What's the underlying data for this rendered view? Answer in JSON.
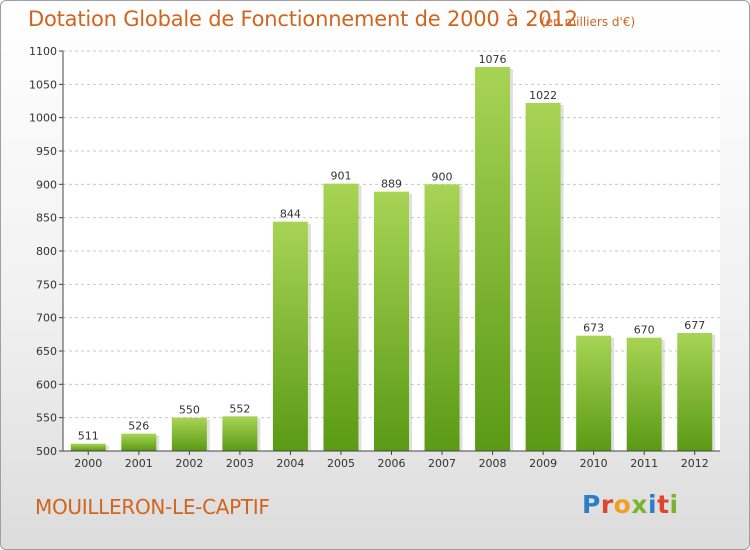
{
  "header": {
    "title": "Dotation Globale de Fonctionnement de 2000 à 2012",
    "subtitle": "(en milliers d'€)"
  },
  "footer": {
    "commune": "MOUILLERON-LE-CAPTIF",
    "logo_text": "Proxiti",
    "logo_colors": [
      "#2d7fc1",
      "#e0462e",
      "#f0a020",
      "#7ab42c",
      "#2d7fc1",
      "#e0462e",
      "#7ab42c"
    ]
  },
  "colors": {
    "accent": "#d2641e",
    "bar_light": "#a8d455",
    "bar_dark": "#5a9a14",
    "grid": "#c8c8c8",
    "axis": "#444444"
  },
  "chart_data": {
    "type": "bar",
    "categories": [
      "2000",
      "2001",
      "2002",
      "2003",
      "2004",
      "2005",
      "2006",
      "2007",
      "2008",
      "2009",
      "2010",
      "2011",
      "2012"
    ],
    "values": [
      511,
      526,
      550,
      552,
      844,
      901,
      889,
      900,
      1076,
      1022,
      673,
      670,
      677
    ],
    "ylim": [
      500,
      1100
    ],
    "yticks": [
      500,
      550,
      600,
      650,
      700,
      750,
      800,
      850,
      900,
      950,
      1000,
      1050,
      1100
    ],
    "grid": true,
    "legend": "none"
  }
}
